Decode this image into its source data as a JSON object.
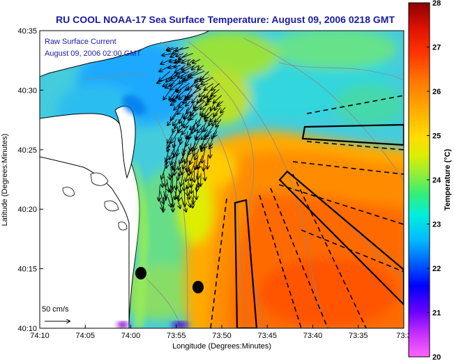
{
  "title": "RU COOL  NOAA-17  Sea Surface Temperature:  August 09, 2006 0218 GMT",
  "annotations": {
    "line1": "Raw Surface Current",
    "line2": "August 09, 2006 02:00 GMT",
    "scale": "50 cm/s"
  },
  "axes": {
    "xlabel": "Longitude (Degrees:Minutes)",
    "ylabel": "Latitude (Degrees:Minutes)",
    "xticks": [
      "74:10",
      "74:05",
      "74:00",
      "73:55",
      "73:50",
      "73:45",
      "73:40",
      "73:35",
      "73:3"
    ],
    "yticks": [
      "40:35",
      "40:30",
      "40:25",
      "40:20",
      "40:15",
      "40:10"
    ]
  },
  "colorbar": {
    "label": "Temperature (°C)",
    "ticks": [
      "28",
      "27",
      "26",
      "25",
      "24",
      "23",
      "22",
      "21",
      "20"
    ],
    "min": 20,
    "max": 28
  },
  "colors": {
    "title": "#1a1aa8",
    "annotation": "#1a1aa8",
    "land": "#ffffff",
    "coast": "#000000"
  }
}
